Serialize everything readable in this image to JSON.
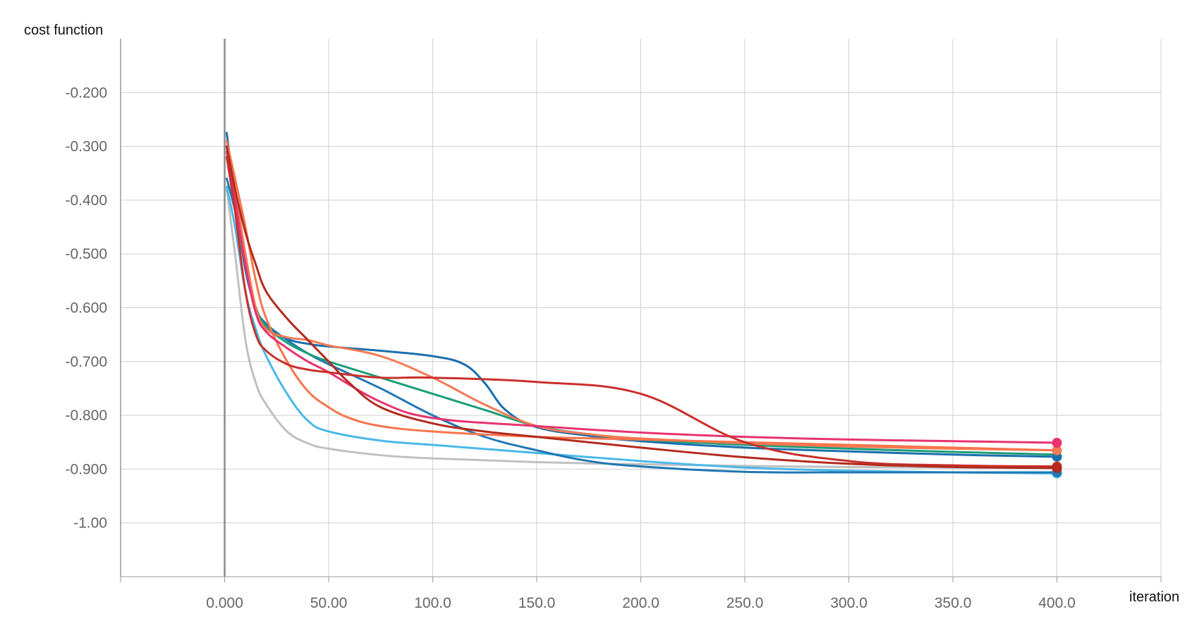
{
  "chart_data": {
    "type": "line",
    "xlabel": "iteration",
    "ylabel": "cost function",
    "xlim": [
      -50,
      450
    ],
    "ylim": [
      -1.1,
      -0.1
    ],
    "xticks": [
      0,
      50,
      100,
      150,
      200,
      250,
      300,
      350,
      400
    ],
    "xtick_labels": [
      "0.000",
      "50.00",
      "100.0",
      "150.0",
      "200.0",
      "250.0",
      "300.0",
      "350.0",
      "400.0"
    ],
    "yticks": [
      -0.2,
      -0.3,
      -0.4,
      -0.5,
      -0.6,
      -0.7,
      -0.8,
      -0.9,
      -1.0
    ],
    "ytick_labels": [
      "-0.200",
      "-0.300",
      "-0.400",
      "-0.500",
      "-0.600",
      "-0.700",
      "-0.800",
      "-0.900",
      "-1.00"
    ],
    "grid": true,
    "series": [
      {
        "color": "#c0c0c0",
        "end_marker": false,
        "x": [
          1,
          5,
          10,
          15,
          20,
          30,
          40,
          50,
          75,
          100,
          150,
          200,
          250,
          300,
          350,
          400
        ],
        "y": [
          -0.38,
          -0.5,
          -0.66,
          -0.74,
          -0.78,
          -0.83,
          -0.852,
          -0.862,
          -0.874,
          -0.88,
          -0.887,
          -0.891,
          -0.894,
          -0.896,
          -0.897,
          -0.898
        ]
      },
      {
        "color": "#4ab8e8",
        "end_marker": true,
        "x": [
          1,
          5,
          10,
          15,
          20,
          30,
          40,
          50,
          75,
          100,
          150,
          200,
          250,
          300,
          350,
          400
        ],
        "y": [
          -0.375,
          -0.45,
          -0.57,
          -0.64,
          -0.69,
          -0.76,
          -0.81,
          -0.83,
          -0.847,
          -0.855,
          -0.87,
          -0.885,
          -0.897,
          -0.903,
          -0.906,
          -0.908
        ]
      },
      {
        "color": "#1f77b4",
        "end_marker": true,
        "x": [
          1,
          5,
          10,
          15,
          20,
          30,
          40,
          50,
          75,
          100,
          125,
          150,
          175,
          200,
          250,
          300,
          350,
          400
        ],
        "y": [
          -0.36,
          -0.42,
          -0.52,
          -0.6,
          -0.63,
          -0.66,
          -0.685,
          -0.705,
          -0.75,
          -0.8,
          -0.84,
          -0.865,
          -0.885,
          -0.895,
          -0.905,
          -0.906,
          -0.906,
          -0.906
        ]
      },
      {
        "color": "#1a6fad",
        "end_marker": true,
        "x": [
          1,
          5,
          10,
          15,
          20,
          30,
          40,
          50,
          75,
          100,
          115,
          125,
          135,
          150,
          175,
          200,
          250,
          300,
          350,
          400
        ],
        "y": [
          -0.275,
          -0.4,
          -0.53,
          -0.6,
          -0.635,
          -0.658,
          -0.667,
          -0.672,
          -0.68,
          -0.69,
          -0.705,
          -0.74,
          -0.79,
          -0.822,
          -0.838,
          -0.848,
          -0.86,
          -0.867,
          -0.873,
          -0.877
        ]
      },
      {
        "color": "#1b9e77",
        "end_marker": false,
        "x": [
          1,
          5,
          10,
          15,
          20,
          30,
          40,
          50,
          75,
          100,
          125,
          150,
          175,
          200,
          250,
          300,
          350,
          400
        ],
        "y": [
          -0.3,
          -0.41,
          -0.52,
          -0.6,
          -0.635,
          -0.665,
          -0.685,
          -0.7,
          -0.73,
          -0.76,
          -0.79,
          -0.82,
          -0.835,
          -0.845,
          -0.855,
          -0.862,
          -0.868,
          -0.873
        ]
      },
      {
        "color": "#f47a55",
        "end_marker": true,
        "x": [
          1,
          5,
          10,
          15,
          20,
          30,
          40,
          50,
          75,
          100,
          125,
          150,
          175,
          200,
          250,
          300,
          350,
          400
        ],
        "y": [
          -0.3,
          -0.38,
          -0.5,
          -0.6,
          -0.64,
          -0.655,
          -0.66,
          -0.67,
          -0.69,
          -0.73,
          -0.78,
          -0.82,
          -0.835,
          -0.843,
          -0.852,
          -0.858,
          -0.862,
          -0.865
        ]
      },
      {
        "color": "#f8744c",
        "end_marker": false,
        "x": [
          1,
          5,
          10,
          15,
          20,
          30,
          40,
          50,
          60,
          75,
          100,
          150,
          200,
          250,
          300,
          350,
          400
        ],
        "y": [
          -0.29,
          -0.36,
          -0.45,
          -0.55,
          -0.62,
          -0.7,
          -0.755,
          -0.785,
          -0.805,
          -0.82,
          -0.83,
          -0.84,
          -0.845,
          -0.85,
          -0.855,
          -0.86,
          -0.865
        ]
      },
      {
        "color": "#e8336f",
        "end_marker": true,
        "x": [
          1,
          5,
          10,
          15,
          20,
          30,
          40,
          50,
          75,
          100,
          150,
          200,
          250,
          300,
          350,
          400
        ],
        "y": [
          -0.31,
          -0.4,
          -0.52,
          -0.61,
          -0.645,
          -0.675,
          -0.7,
          -0.72,
          -0.775,
          -0.805,
          -0.82,
          -0.832,
          -0.84,
          -0.845,
          -0.848,
          -0.851
        ]
      },
      {
        "color": "#c9302c",
        "end_marker": true,
        "x": [
          1,
          5,
          10,
          15,
          20,
          30,
          40,
          50,
          75,
          100,
          150,
          200,
          250,
          300,
          350,
          400
        ],
        "y": [
          -0.32,
          -0.42,
          -0.57,
          -0.65,
          -0.68,
          -0.705,
          -0.715,
          -0.72,
          -0.73,
          -0.73,
          -0.738,
          -0.76,
          -0.85,
          -0.885,
          -0.893,
          -0.895
        ]
      },
      {
        "color": "#b22b1e",
        "end_marker": true,
        "x": [
          1,
          5,
          10,
          15,
          20,
          30,
          40,
          50,
          60,
          75,
          100,
          125,
          150,
          200,
          250,
          300,
          350,
          400
        ],
        "y": [
          -0.3,
          -0.38,
          -0.46,
          -0.52,
          -0.57,
          -0.62,
          -0.66,
          -0.7,
          -0.74,
          -0.785,
          -0.815,
          -0.83,
          -0.84,
          -0.86,
          -0.878,
          -0.89,
          -0.896,
          -0.898
        ]
      }
    ]
  }
}
